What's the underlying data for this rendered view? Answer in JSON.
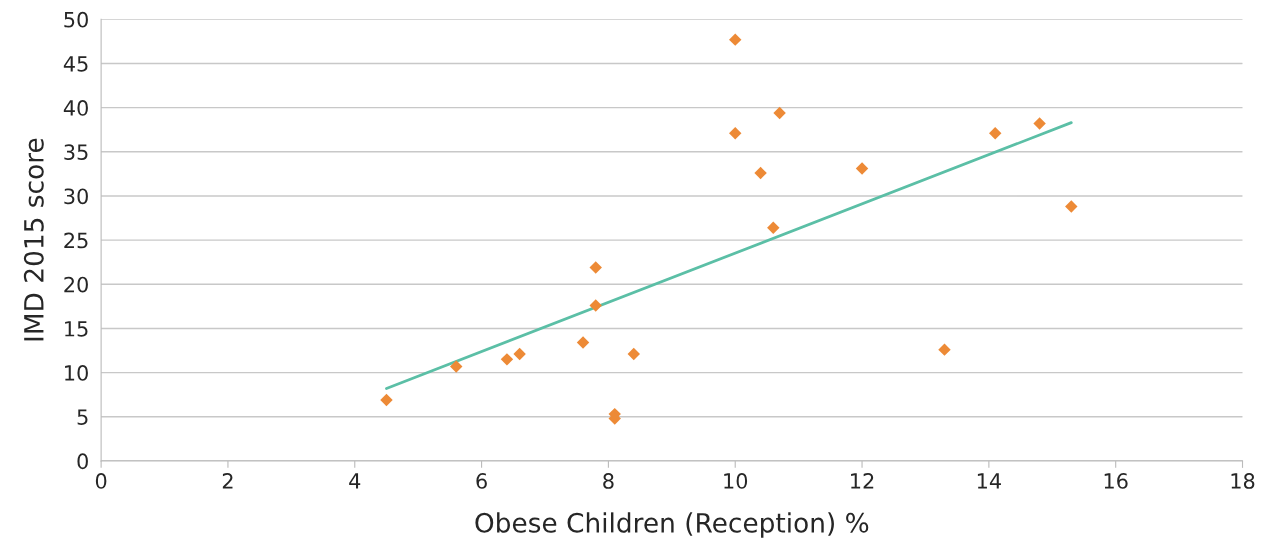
{
  "chart_data": {
    "type": "scatter",
    "xlabel": "Obese Children (Reception) %",
    "ylabel": "IMD 2015 score",
    "series": [
      {
        "color": "#ed8a36",
        "marker": "diamond",
        "x": [
          4.5,
          5.6,
          6.4,
          6.6,
          7.6,
          7.8,
          7.8,
          8.1,
          8.1,
          8.4,
          10.0,
          10.0,
          10.4,
          10.6,
          10.7,
          12.0,
          13.3,
          14.1,
          14.8,
          15.3
        ],
        "values": [
          6.9,
          10.7,
          11.5,
          12.1,
          13.4,
          21.9,
          17.6,
          5.3,
          4.8,
          12.1,
          47.7,
          37.1,
          32.6,
          26.4,
          39.4,
          33.1,
          12.6,
          37.1,
          38.2,
          28.8
        ]
      },
      {
        "type": "line",
        "color": "#5bbfa6",
        "marker": "none",
        "x": [
          4.5,
          15.3
        ],
        "values": [
          8.2,
          38.3
        ]
      }
    ],
    "xlim": [
      0,
      18
    ],
    "xticks": [
      0,
      2,
      4,
      6,
      8,
      10,
      12,
      14,
      16,
      18
    ],
    "ylim": [
      0,
      50
    ],
    "yticks": [
      0,
      5,
      10,
      15,
      20,
      25,
      30,
      35,
      40,
      45,
      50
    ],
    "grid": "y",
    "legend": false
  }
}
